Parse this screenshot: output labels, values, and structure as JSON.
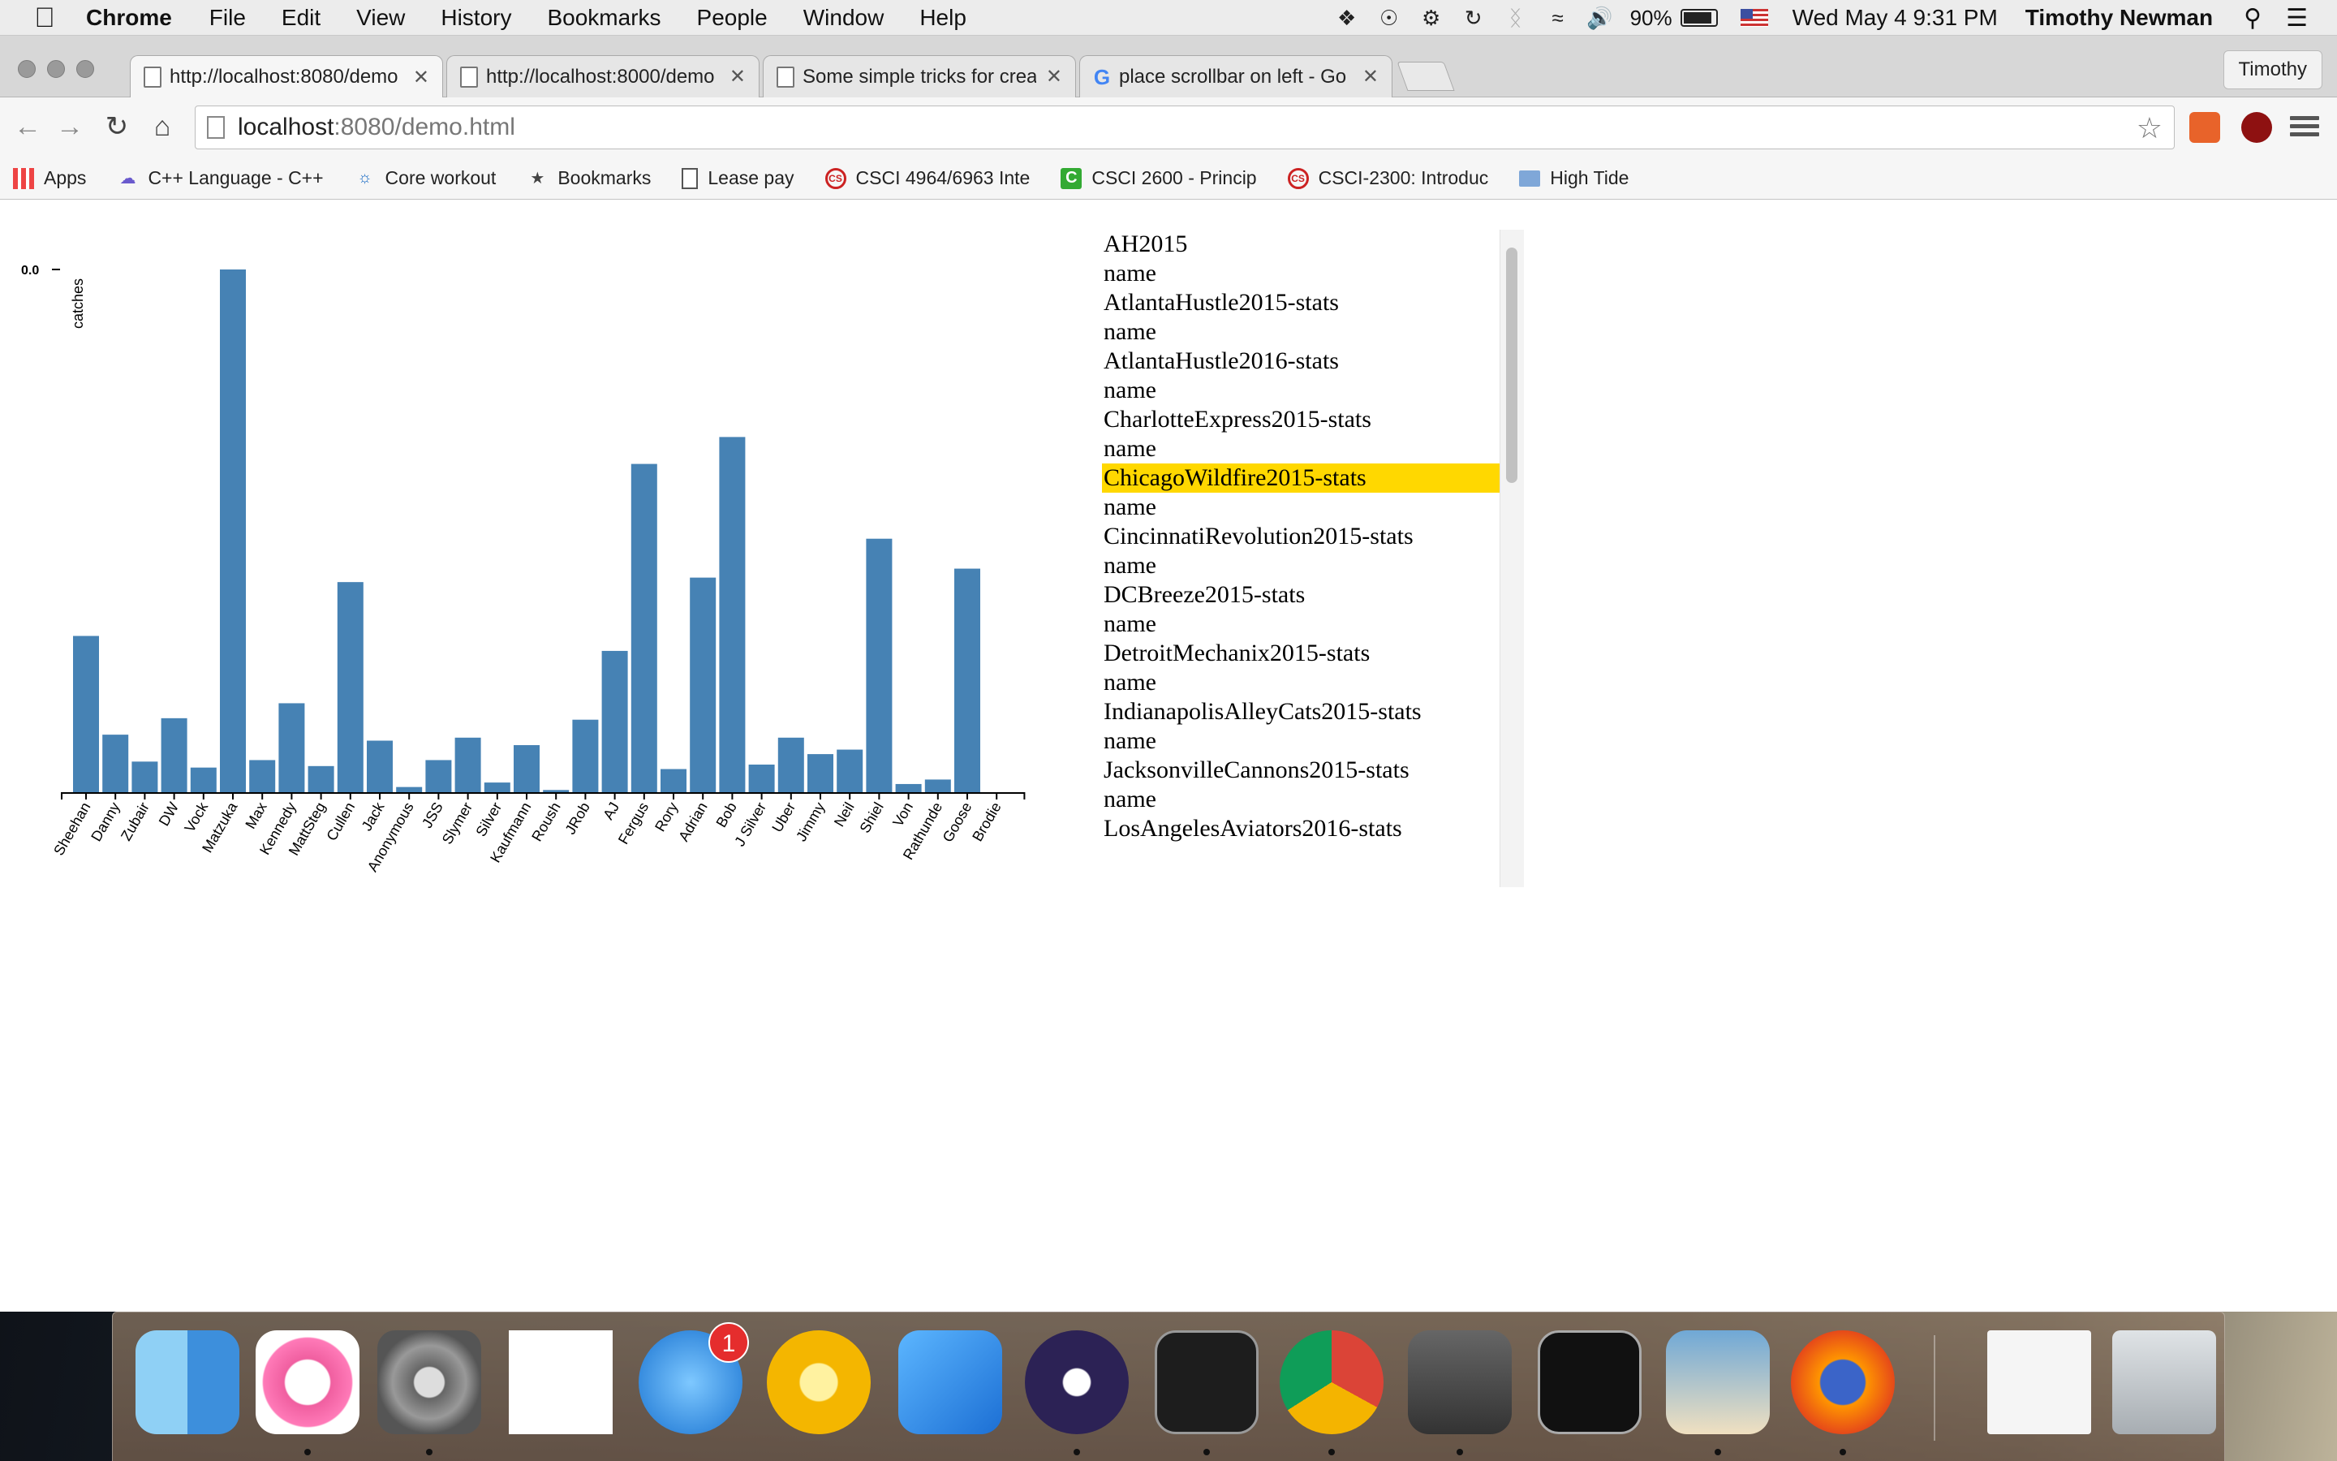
{
  "menubar": {
    "app": "Chrome",
    "menus": [
      "File",
      "Edit",
      "View",
      "History",
      "Bookmarks",
      "People",
      "Window",
      "Help"
    ],
    "battery_pct": "90%",
    "battery_level": 0.9,
    "clock": "Wed May 4  9:31 PM",
    "user": "Timothy Newman"
  },
  "browser": {
    "tabs": [
      {
        "title": "http://localhost:8080/demo",
        "icon": "page-icon",
        "active": true
      },
      {
        "title": "http://localhost:8000/demo",
        "icon": "page-icon",
        "active": false
      },
      {
        "title": "Some simple tricks for crea",
        "icon": "page-icon",
        "active": false
      },
      {
        "title": "place scrollbar on left - Go",
        "icon": "google-icon",
        "active": false
      }
    ],
    "profile": "Timothy",
    "url_host": "localhost",
    "url_path": ":8080/demo.html",
    "bookmarks": [
      {
        "label": "Apps",
        "icon": "apps-grid-icon"
      },
      {
        "label": "C++ Language - C++",
        "icon": "cpp-icon"
      },
      {
        "label": "Core workout",
        "icon": "workout-icon"
      },
      {
        "label": "Bookmarks",
        "icon": "star-icon"
      },
      {
        "label": "Lease pay",
        "icon": "document-icon"
      },
      {
        "label": "CSCI 4964/6963 Inte",
        "icon": "cs-icon"
      },
      {
        "label": "CSCI 2600 - Princip",
        "icon": "c-icon"
      },
      {
        "label": "CSCI-2300: Introduc",
        "icon": "cs-icon"
      },
      {
        "label": "High Tide",
        "icon": "folder-icon"
      }
    ]
  },
  "chart_data": {
    "type": "bar",
    "ylabel": "catches",
    "y_tick_label": "0.0",
    "color": "#4682b4",
    "ylim": [
      0,
      35
    ],
    "categories": [
      "Sheehan",
      "Danny",
      "Zubair",
      "DW",
      "Vock",
      "Matzuka",
      "Max",
      "Kennedy",
      "MattSteg",
      "Cullen",
      "Jack",
      "Anonymous",
      "JSS",
      "Slymer",
      "Silver",
      "Kaufmann",
      "Roush",
      "JRob",
      "AJ",
      "Fergus",
      "Rory",
      "Adrian",
      "Bob",
      "J Silver",
      "Uber",
      "Jimmy",
      "Neil",
      "Shiel",
      "Von",
      "Rathunde",
      "Goose",
      "Brodie"
    ],
    "values": [
      10.5,
      3.9,
      2.1,
      5.0,
      1.7,
      35.0,
      2.2,
      6.0,
      1.8,
      14.1,
      3.5,
      0.4,
      2.2,
      3.7,
      0.7,
      3.2,
      0.2,
      4.9,
      9.5,
      22.0,
      1.6,
      14.4,
      23.8,
      1.9,
      3.7,
      2.6,
      2.9,
      17.0,
      0.6,
      0.9,
      15.0,
      0
    ]
  },
  "list": {
    "selected_index": 8,
    "items": [
      "AH2015",
      "name",
      "AtlantaHustle2015-stats",
      "name",
      "AtlantaHustle2016-stats",
      "name",
      "CharlotteExpress2015-stats",
      "name",
      "ChicagoWildfire2015-stats",
      "name",
      "CincinnatiRevolution2015-stats",
      "name",
      "DCBreeze2015-stats",
      "name",
      "DetroitMechanix2015-stats",
      "name",
      "IndianapolisAlleyCats2015-stats",
      "name",
      "JacksonvilleCannons2015-stats",
      "name",
      "LosAngelesAviators2016-stats"
    ]
  },
  "dock": {
    "apps": [
      {
        "name": "finder-icon"
      },
      {
        "name": "itunes-icon"
      },
      {
        "name": "system-preferences-icon"
      },
      {
        "name": "word-icon"
      },
      {
        "name": "app-store-icon",
        "badge": "1"
      },
      {
        "name": "outlook-icon"
      },
      {
        "name": "xcode-icon"
      },
      {
        "name": "eclipse-icon"
      },
      {
        "name": "terminal-icon"
      },
      {
        "name": "chrome-icon"
      },
      {
        "name": "sublime-text-icon"
      },
      {
        "name": "activity-monitor-icon"
      },
      {
        "name": "preview-icon"
      },
      {
        "name": "firefox-icon"
      },
      {
        "name": "document-icon"
      },
      {
        "name": "trash-icon"
      }
    ]
  }
}
